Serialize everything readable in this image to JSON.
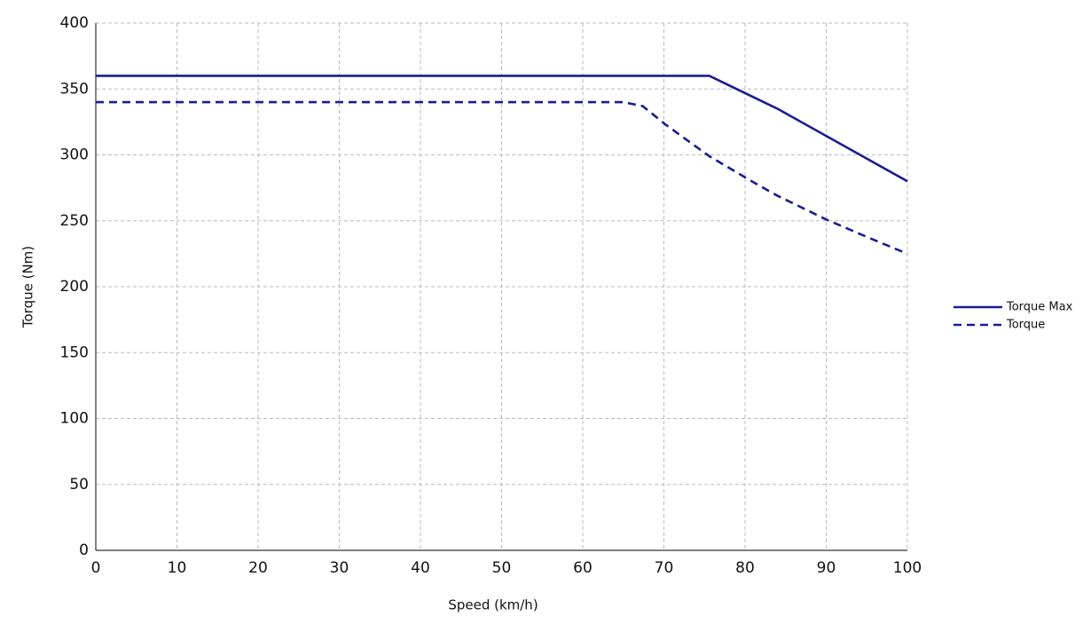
{
  "chart_data": {
    "type": "line",
    "x_label": "Speed (km/h)",
    "y_label": "Torque (Nm)",
    "xlim": [
      0,
      100
    ],
    "xticks": [
      0,
      10,
      20,
      30,
      40,
      50,
      60,
      70,
      80,
      90,
      100
    ],
    "ylim": [
      0,
      400
    ],
    "yticks": [
      0,
      50,
      100,
      150,
      200,
      250,
      300,
      350,
      400
    ],
    "grid": true,
    "legend": "right",
    "series": [
      {
        "name": "Torque Max",
        "color": "#1c1c8f",
        "style": "solid",
        "x": [
          0,
          75.6,
          84,
          100
        ],
        "values": [
          360,
          360,
          335,
          280
        ]
      },
      {
        "name": "Torque",
        "color": "#1c1c8f",
        "style": "dashed",
        "x": [
          0,
          65,
          67.4,
          70.2,
          75.6,
          81.1,
          84,
          90,
          95.3,
          100
        ],
        "values": [
          340,
          340,
          337,
          323,
          299,
          279,
          269,
          251,
          237,
          225
        ]
      }
    ]
  }
}
